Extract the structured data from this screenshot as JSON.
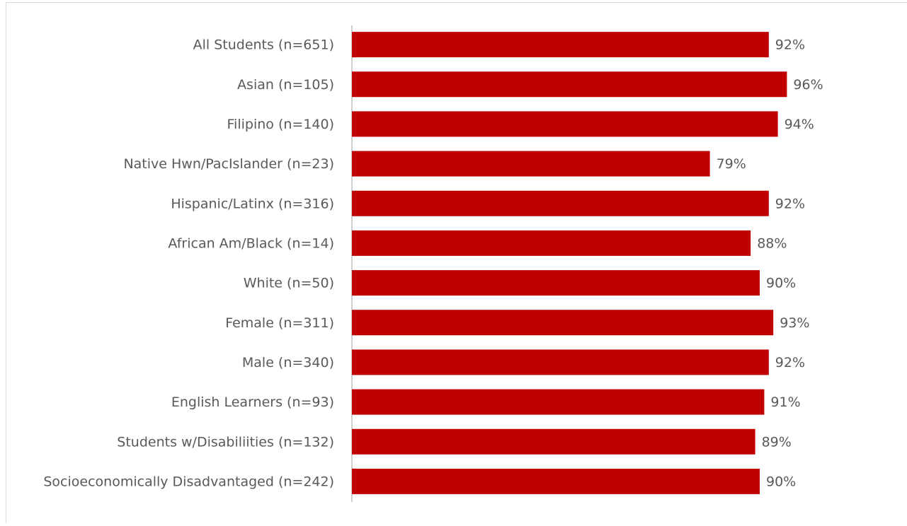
{
  "chart_data": {
    "type": "barh",
    "categories": [
      "All Students (n=651)",
      "Asian (n=105)",
      "Filipino (n=140)",
      "Native Hwn/PacIslander (n=23)",
      "Hispanic/Latinx (n=316)",
      "African Am/Black (n=14)",
      "White (n=50)",
      "Female (n=311)",
      "Male (n=340)",
      "English Learners (n=93)",
      "Students w/Disabiliities (n=132)",
      "Socioeconomically Disadvantaged (n=242)"
    ],
    "values": [
      92,
      96,
      94,
      79,
      92,
      88,
      90,
      93,
      92,
      91,
      89,
      90
    ],
    "value_labels": [
      "92%",
      "96%",
      "94%",
      "79%",
      "92%",
      "88%",
      "90%",
      "93%",
      "92%",
      "91%",
      "89%",
      "90%"
    ],
    "color": "#c00000",
    "xlim": [
      0,
      100
    ]
  }
}
